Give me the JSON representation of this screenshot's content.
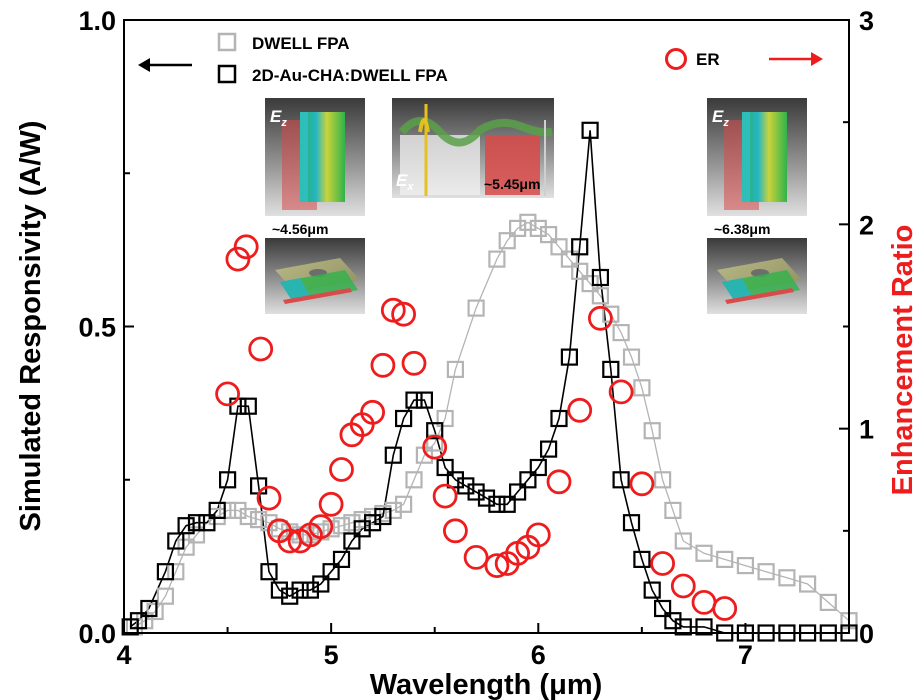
{
  "chart_data": {
    "type": "scatter",
    "xlabel": "Wavelength (μm)",
    "ylabel": "Simulated Responsivity (A/W)",
    "y2label": "Enhancement Ratio",
    "xlim": [
      4.0,
      7.5
    ],
    "ylim": [
      0.0,
      1.0
    ],
    "y2lim": [
      0,
      3
    ],
    "xticks": [
      "4",
      "5",
      "6",
      "7"
    ],
    "yticks": [
      "0.0",
      "0.5",
      "1.0"
    ],
    "y2ticks": [
      "0",
      "1",
      "2",
      "3"
    ],
    "legend_placement": "top",
    "series": [
      {
        "name": "DWELL FPA",
        "axis": "left",
        "color": "#b4b4b4",
        "marker": "open-square",
        "points": [
          [
            4.05,
            0.01
          ],
          [
            4.1,
            0.02
          ],
          [
            4.15,
            0.035
          ],
          [
            4.2,
            0.06
          ],
          [
            4.25,
            0.1
          ],
          [
            4.3,
            0.14
          ],
          [
            4.35,
            0.16
          ],
          [
            4.4,
            0.18
          ],
          [
            4.45,
            0.19
          ],
          [
            4.5,
            0.2
          ],
          [
            4.55,
            0.2
          ],
          [
            4.6,
            0.19
          ],
          [
            4.65,
            0.185
          ],
          [
            4.7,
            0.18
          ],
          [
            4.75,
            0.17
          ],
          [
            4.8,
            0.165
          ],
          [
            4.85,
            0.16
          ],
          [
            4.9,
            0.16
          ],
          [
            4.95,
            0.165
          ],
          [
            5.0,
            0.17
          ],
          [
            5.05,
            0.175
          ],
          [
            5.1,
            0.18
          ],
          [
            5.15,
            0.185
          ],
          [
            5.2,
            0.19
          ],
          [
            5.25,
            0.195
          ],
          [
            5.3,
            0.2
          ],
          [
            5.35,
            0.21
          ],
          [
            5.4,
            0.25
          ],
          [
            5.45,
            0.29
          ],
          [
            5.5,
            0.31
          ],
          [
            5.55,
            0.35
          ],
          [
            5.6,
            0.43
          ],
          [
            5.7,
            0.53
          ],
          [
            5.8,
            0.61
          ],
          [
            5.85,
            0.64
          ],
          [
            5.9,
            0.66
          ],
          [
            5.95,
            0.67
          ],
          [
            6.0,
            0.66
          ],
          [
            6.05,
            0.65
          ],
          [
            6.1,
            0.63
          ],
          [
            6.15,
            0.61
          ],
          [
            6.2,
            0.59
          ],
          [
            6.25,
            0.57
          ],
          [
            6.3,
            0.55
          ],
          [
            6.35,
            0.52
          ],
          [
            6.4,
            0.49
          ],
          [
            6.45,
            0.45
          ],
          [
            6.5,
            0.4
          ],
          [
            6.55,
            0.33
          ],
          [
            6.6,
            0.25
          ],
          [
            6.65,
            0.2
          ],
          [
            6.7,
            0.15
          ],
          [
            6.8,
            0.13
          ],
          [
            6.9,
            0.12
          ],
          [
            7.0,
            0.11
          ],
          [
            7.1,
            0.1
          ],
          [
            7.2,
            0.09
          ],
          [
            7.3,
            0.08
          ],
          [
            7.4,
            0.05
          ],
          [
            7.5,
            0.02
          ]
        ]
      },
      {
        "name": "2D-Au-CHA:DWELL FPA",
        "axis": "left",
        "color": "#000000",
        "marker": "open-square",
        "points": [
          [
            4.03,
            0.01
          ],
          [
            4.07,
            0.02
          ],
          [
            4.12,
            0.04
          ],
          [
            4.2,
            0.1
          ],
          [
            4.25,
            0.15
          ],
          [
            4.3,
            0.175
          ],
          [
            4.35,
            0.18
          ],
          [
            4.4,
            0.18
          ],
          [
            4.45,
            0.2
          ],
          [
            4.5,
            0.25
          ],
          [
            4.55,
            0.37
          ],
          [
            4.6,
            0.37
          ],
          [
            4.65,
            0.24
          ],
          [
            4.7,
            0.1
          ],
          [
            4.75,
            0.07
          ],
          [
            4.8,
            0.06
          ],
          [
            4.85,
            0.07
          ],
          [
            4.9,
            0.07
          ],
          [
            4.95,
            0.08
          ],
          [
            5.0,
            0.1
          ],
          [
            5.05,
            0.12
          ],
          [
            5.1,
            0.15
          ],
          [
            5.15,
            0.17
          ],
          [
            5.2,
            0.18
          ],
          [
            5.25,
            0.19
          ],
          [
            5.3,
            0.29
          ],
          [
            5.35,
            0.35
          ],
          [
            5.4,
            0.38
          ],
          [
            5.45,
            0.38
          ],
          [
            5.5,
            0.33
          ],
          [
            5.55,
            0.27
          ],
          [
            5.6,
            0.25
          ],
          [
            5.65,
            0.24
          ],
          [
            5.7,
            0.23
          ],
          [
            5.75,
            0.22
          ],
          [
            5.8,
            0.21
          ],
          [
            5.85,
            0.21
          ],
          [
            5.9,
            0.23
          ],
          [
            5.95,
            0.25
          ],
          [
            6.0,
            0.27
          ],
          [
            6.05,
            0.3
          ],
          [
            6.1,
            0.35
          ],
          [
            6.15,
            0.45
          ],
          [
            6.2,
            0.63
          ],
          [
            6.25,
            0.82
          ],
          [
            6.3,
            0.58
          ],
          [
            6.35,
            0.43
          ],
          [
            6.4,
            0.25
          ],
          [
            6.45,
            0.18
          ],
          [
            6.5,
            0.12
          ],
          [
            6.55,
            0.07
          ],
          [
            6.6,
            0.04
          ],
          [
            6.65,
            0.02
          ],
          [
            6.7,
            0.01
          ],
          [
            6.8,
            0.01
          ],
          [
            6.9,
            0.0
          ],
          [
            7.0,
            0.0
          ],
          [
            7.1,
            0.0
          ],
          [
            7.2,
            0.0
          ],
          [
            7.3,
            0.0
          ],
          [
            7.4,
            0.0
          ],
          [
            7.5,
            0.0
          ]
        ]
      },
      {
        "name": "ER",
        "axis": "right",
        "color": "#ee1c1c",
        "marker": "open-circle",
        "points": [
          [
            4.5,
            1.17
          ],
          [
            4.55,
            1.83
          ],
          [
            4.59,
            1.89
          ],
          [
            4.66,
            1.39
          ],
          [
            4.7,
            0.66
          ],
          [
            4.75,
            0.5
          ],
          [
            4.8,
            0.45
          ],
          [
            4.85,
            0.45
          ],
          [
            4.9,
            0.48
          ],
          [
            4.95,
            0.52
          ],
          [
            5.0,
            0.63
          ],
          [
            5.05,
            0.8
          ],
          [
            5.1,
            0.97
          ],
          [
            5.15,
            1.02
          ],
          [
            5.2,
            1.08
          ],
          [
            5.25,
            1.31
          ],
          [
            5.3,
            1.58
          ],
          [
            5.35,
            1.56
          ],
          [
            5.4,
            1.32
          ],
          [
            5.5,
            0.91
          ],
          [
            5.55,
            0.67
          ],
          [
            5.6,
            0.5
          ],
          [
            5.7,
            0.37
          ],
          [
            5.8,
            0.33
          ],
          [
            5.85,
            0.34
          ],
          [
            5.9,
            0.39
          ],
          [
            5.95,
            0.42
          ],
          [
            6.0,
            0.48
          ],
          [
            6.1,
            0.74
          ],
          [
            6.2,
            1.09
          ],
          [
            6.3,
            1.54
          ],
          [
            6.4,
            1.18
          ],
          [
            6.5,
            0.73
          ],
          [
            6.6,
            0.34
          ],
          [
            6.7,
            0.23
          ],
          [
            6.8,
            0.15
          ],
          [
            6.9,
            0.12
          ]
        ]
      }
    ],
    "annotations": {
      "left_arrow": "←",
      "right_arrow": "→",
      "inset_left_label": "~4.56μm",
      "inset_middle_label": "~5.45μm",
      "inset_right_label": "~6.38μm",
      "field_ez": "E",
      "field_ez_sub": "z",
      "field_ex": "E",
      "field_ex_sub": "x"
    }
  }
}
